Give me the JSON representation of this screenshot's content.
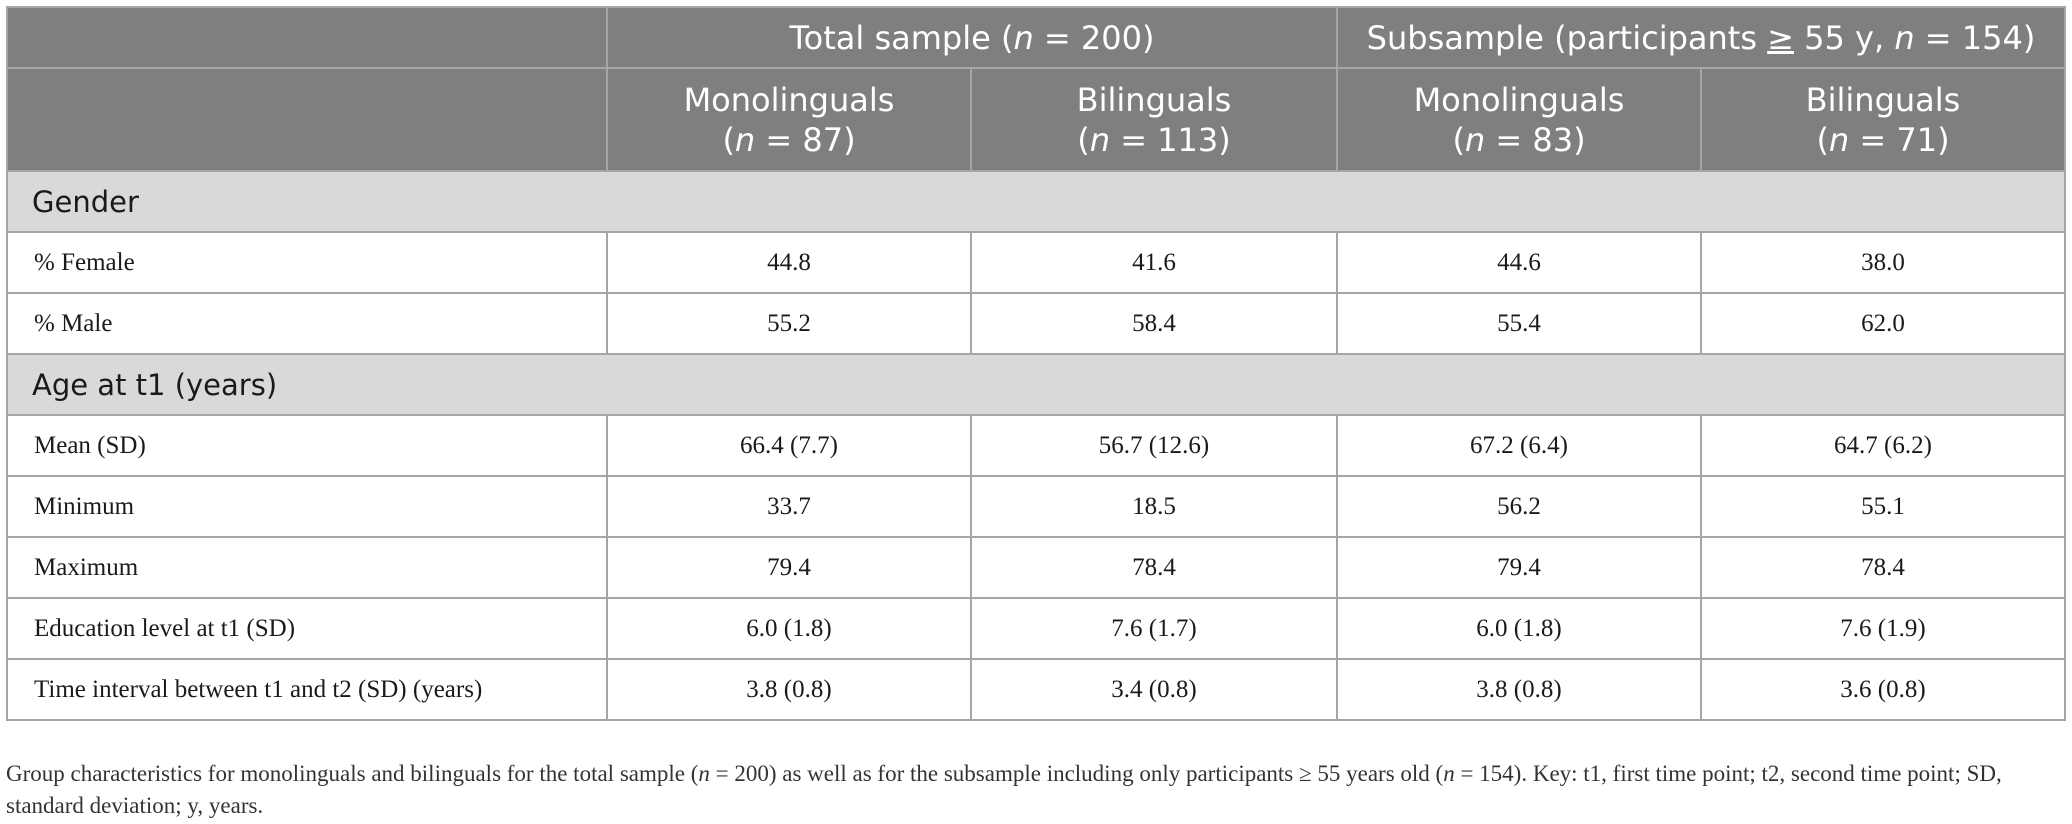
{
  "header": {
    "group_total_pre": "Total sample (",
    "group_total_post": " = 200)",
    "group_sub_pre": "Subsample (participants ",
    "group_sub_ge": "≥",
    "group_sub_mid": " 55 y, ",
    "group_sub_post": " = 154)",
    "n_symbol": "n",
    "columns": [
      {
        "label": "Monolinguals",
        "n_value": " = 87)"
      },
      {
        "label": "Bilinguals",
        "n_value": " = 113)"
      },
      {
        "label": "Monolinguals",
        "n_value": " = 83)"
      },
      {
        "label": "Bilinguals",
        "n_value": " = 71)"
      }
    ]
  },
  "sections": {
    "gender": "Gender",
    "age": "Age at t1 (years)"
  },
  "rows": {
    "female": {
      "label": "% Female",
      "values": [
        "44.8",
        "41.6",
        "44.6",
        "38.0"
      ]
    },
    "male": {
      "label": "% Male",
      "values": [
        "55.2",
        "58.4",
        "55.4",
        "62.0"
      ]
    },
    "mean": {
      "label": "Mean (SD)",
      "values": [
        "66.4 (7.7)",
        "56.7 (12.6)",
        "67.2 (6.4)",
        "64.7 (6.2)"
      ]
    },
    "minimum": {
      "label": "Minimum",
      "values": [
        "33.7",
        "18.5",
        "56.2",
        "55.1"
      ]
    },
    "maximum": {
      "label": "Maximum",
      "values": [
        "79.4",
        "78.4",
        "79.4",
        "78.4"
      ]
    },
    "education": {
      "label": "Education level at t1 (SD)",
      "values": [
        "6.0 (1.8)",
        "7.6 (1.7)",
        "6.0 (1.8)",
        "7.6 (1.9)"
      ]
    },
    "interval": {
      "label": "Time interval between t1 and t2 (SD) (years)",
      "values": [
        "3.8 (0.8)",
        "3.4 (0.8)",
        "3.8 (0.8)",
        "3.6 (0.8)"
      ]
    }
  },
  "note": {
    "part1": "Group characteristics for monolinguals and bilinguals for the total sample (",
    "part2": " = 200) as well as for the subsample including only participants ≥ 55 years old (",
    "part3": " = 154). Key: t1, first time point; t2, second time point; SD, standard deviation; y, years."
  },
  "colors": {
    "header_bg": "#7f7f7f",
    "section_bg": "#d9d9d9",
    "border": "#a6a6a6"
  }
}
